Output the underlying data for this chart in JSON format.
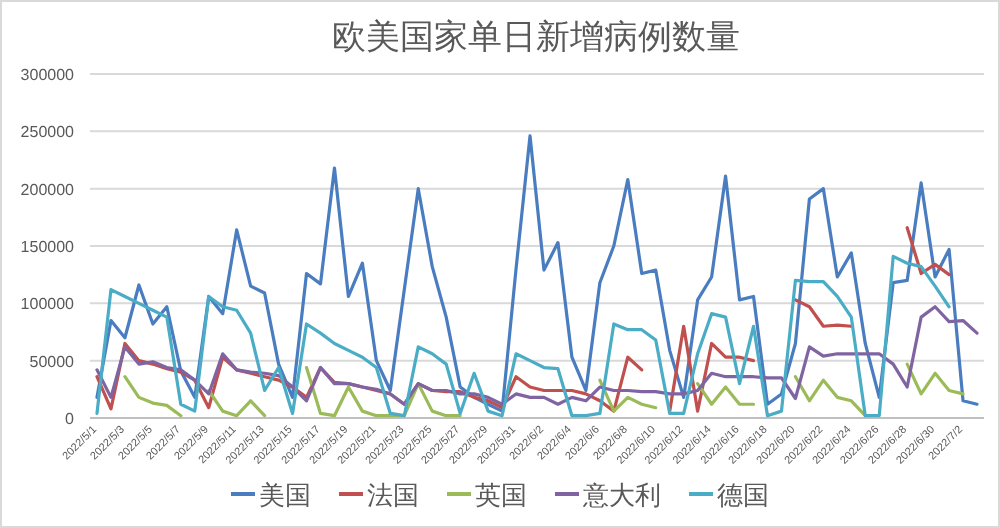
{
  "chart_data": {
    "type": "line",
    "title": "欧美国家单日新增病例数量",
    "categories": [
      "2022/5/1",
      null,
      "2022/5/3",
      null,
      "2022/5/5",
      null,
      "2022/5/7",
      null,
      "2022/5/9",
      null,
      "2022/5/11",
      null,
      "2022/5/13",
      null,
      "2022/5/15",
      null,
      "2022/5/17",
      null,
      "2022/5/19",
      null,
      "2022/5/21",
      null,
      "2022/5/23",
      null,
      "2022/5/25",
      null,
      "2022/5/27",
      null,
      "2022/5/29",
      null,
      "2022/5/31",
      null,
      "2022/6/2",
      null,
      "2022/6/4",
      null,
      "2022/6/6",
      null,
      "2022/6/8",
      null,
      "2022/6/10",
      null,
      "2022/6/12",
      null,
      "2022/6/14",
      null,
      "2022/6/16",
      null,
      "2022/6/18",
      null,
      "2022/6/20",
      null,
      "2022/6/22",
      null,
      "2022/6/24",
      null,
      "2022/6/26",
      null,
      "2022/6/28",
      null,
      "2022/6/30",
      null,
      "2022/7/2",
      null
    ],
    "series": [
      {
        "name": "美国",
        "color": "#4a7cc0",
        "values": [
          18000,
          85000,
          70000,
          116000,
          82000,
          97000,
          41000,
          18000,
          106000,
          91000,
          164000,
          115000,
          109000,
          47000,
          18000,
          126000,
          117000,
          218000,
          106000,
          135000,
          50000,
          24000,
          112000,
          200000,
          132000,
          88000,
          27000,
          18000,
          12000,
          6000,
          130000,
          246000,
          129000,
          153000,
          53000,
          24000,
          118000,
          150000,
          208000,
          126000,
          129000,
          59000,
          18000,
          103000,
          123000,
          211000,
          103000,
          106000,
          12000,
          21000,
          65000,
          191000,
          200000,
          123000,
          144000,
          65000,
          18000,
          118000,
          120000,
          205000,
          123000,
          147000,
          15000,
          12000
        ]
      },
      {
        "name": "法国",
        "color": "#c0504d",
        "values": [
          36000,
          8000,
          65000,
          50000,
          47000,
          43000,
          40000,
          33000,
          9000,
          53000,
          42000,
          39000,
          36000,
          33000,
          27000,
          18000,
          44000,
          31000,
          30000,
          27000,
          24000,
          21000,
          12000,
          30000,
          24000,
          23000,
          23000,
          18000,
          15000,
          9000,
          36000,
          27000,
          24000,
          24000,
          24000,
          21000,
          15000,
          6000,
          53000,
          42000,
          null,
          6000,
          80000,
          6000,
          65000,
          53000,
          53000,
          50000,
          null,
          null,
          103000,
          97000,
          80000,
          81000,
          80000,
          null,
          null,
          null,
          166000,
          126000,
          134000,
          125000,
          null,
          null
        ]
      },
      {
        "name": "英国",
        "color": "#9bbb59",
        "values": [
          null,
          null,
          36000,
          18000,
          13000,
          11000,
          2000,
          null,
          24000,
          6000,
          2000,
          15000,
          2000,
          null,
          null,
          44000,
          4000,
          2000,
          27000,
          6000,
          2000,
          2000,
          2000,
          30000,
          6000,
          2000,
          2000,
          null,
          null,
          null,
          null,
          null,
          null,
          null,
          null,
          null,
          33000,
          6000,
          18000,
          12000,
          9000,
          null,
          null,
          30000,
          12000,
          27000,
          12000,
          12000,
          null,
          null,
          36000,
          15000,
          33000,
          18000,
          15000,
          2000,
          null,
          null,
          47000,
          21000,
          39000,
          24000,
          21000,
          null
        ]
      },
      {
        "name": "意大利",
        "color": "#8064a2",
        "values": [
          42000,
          18000,
          62000,
          47000,
          49000,
          44000,
          42000,
          33000,
          21000,
          56000,
          42000,
          40000,
          39000,
          37000,
          27000,
          15000,
          44000,
          30000,
          30000,
          27000,
          25000,
          21000,
          12000,
          30000,
          24000,
          24000,
          21000,
          21000,
          18000,
          12000,
          21000,
          18000,
          18000,
          12000,
          18000,
          15000,
          27000,
          24000,
          24000,
          23000,
          23000,
          21000,
          21000,
          24000,
          39000,
          36000,
          36000,
          36000,
          35000,
          35000,
          17000,
          62000,
          54000,
          56000,
          56000,
          56000,
          56000,
          47000,
          27000,
          88000,
          97000,
          84000,
          85000,
          74000
        ]
      },
      {
        "name": "德国",
        "color": "#4bacc6",
        "values": [
          4000,
          112000,
          106000,
          100000,
          94000,
          88000,
          12000,
          6000,
          106000,
          97000,
          94000,
          74000,
          24000,
          44000,
          4000,
          82000,
          74000,
          65000,
          59000,
          53000,
          44000,
          4000,
          2000,
          62000,
          56000,
          47000,
          4000,
          39000,
          6000,
          2000,
          56000,
          50000,
          44000,
          43000,
          2000,
          2000,
          4000,
          82000,
          77000,
          77000,
          68000,
          4000,
          4000,
          56000,
          91000,
          88000,
          30000,
          80000,
          2000,
          6000,
          120000,
          119000,
          119000,
          106000,
          88000,
          2000,
          2000,
          141000,
          135000,
          132000,
          115000,
          97000,
          null,
          null
        ]
      }
    ],
    "ylim": [
      0,
      300000
    ],
    "yticks": [
      0,
      50000,
      100000,
      150000,
      200000,
      250000,
      300000
    ],
    "grid": "y",
    "legend": "bottom",
    "marker": "none",
    "line_style": "solid"
  }
}
